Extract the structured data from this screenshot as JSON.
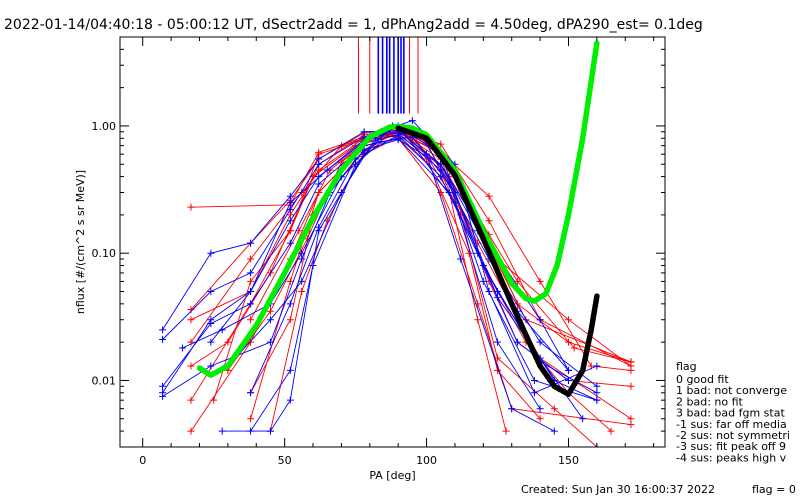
{
  "header": {
    "title": "2022-01-14/04:40:18 - 05:00:12 UT, dSectr2add = 1, dPhAng2add = 4.50deg, dPA290_est=    0.1deg"
  },
  "footer": {
    "created": "Created: Sun Jan 30 16:00:37 2022",
    "flag": "flag = 0"
  },
  "legend": {
    "title": "flag",
    "items": [
      " 0 good fit",
      " 1 bad: not converge",
      " 2 bad: no fit",
      " 3 bad: bad fgm stat",
      "-1 sus: far off media",
      "-2 sus: not symmetri",
      "-3 sus: fit peak off 9",
      "-4 sus: peaks high v"
    ]
  },
  "colors": {
    "red": "#ff0000",
    "blue": "#0000ff",
    "green": "#00ee00",
    "black": "#000000",
    "axis": "#000000"
  },
  "chart_data": {
    "type": "line",
    "xlabel": "PA [deg]",
    "ylabel": "nflux [#/(cm^2 s sr MeV)]",
    "xlim": [
      -8,
      184
    ],
    "ylim": [
      0.003,
      5
    ],
    "y_scale": "log",
    "x_ticks": [
      0,
      50,
      100,
      150
    ],
    "x_tick_labels": [
      "0",
      "50",
      "100",
      "150"
    ],
    "y_ticks": [
      0.01,
      0.1,
      1.0
    ],
    "y_tick_labels": [
      "0.01",
      "0.10",
      "1.00"
    ],
    "x_minor_step": 10,
    "grid": false,
    "legend_position": "right, outside plot",
    "series": [
      {
        "color": "red",
        "x": [
          17,
          52,
          62,
          78,
          90,
          105,
          122,
          132,
          152,
          172
        ],
        "y": [
          0.23,
          0.24,
          0.62,
          0.82,
          0.9,
          0.62,
          0.14,
          0.06,
          0.018,
          0.014
        ]
      },
      {
        "color": "red",
        "x": [
          17,
          38,
          52,
          62,
          78,
          90,
          105,
          122,
          140,
          172
        ],
        "y": [
          0.036,
          0.12,
          0.26,
          0.55,
          0.88,
          0.95,
          0.72,
          0.18,
          0.03,
          0.013
        ]
      },
      {
        "color": "red",
        "x": [
          17,
          38,
          52,
          62,
          78,
          90,
          105,
          122,
          132,
          150,
          172
        ],
        "y": [
          0.03,
          0.05,
          0.2,
          0.45,
          0.8,
          0.92,
          0.6,
          0.12,
          0.04,
          0.02,
          0.014
        ]
      },
      {
        "color": "red",
        "x": [
          17,
          38,
          52,
          62,
          78,
          90,
          105,
          122,
          132,
          150,
          172
        ],
        "y": [
          0.007,
          0.04,
          0.15,
          0.5,
          0.85,
          0.9,
          0.55,
          0.06,
          0.02,
          0.01,
          0.009
        ]
      },
      {
        "color": "red",
        "x": [
          17,
          38,
          52,
          62,
          78,
          90,
          105,
          118,
          130,
          172
        ],
        "y": [
          0.004,
          0.02,
          0.09,
          0.3,
          0.7,
          0.8,
          0.3,
          0.04,
          0.006,
          0.0045
        ]
      },
      {
        "color": "red",
        "x": [
          25,
          38,
          52,
          62,
          78,
          90,
          105,
          122,
          140,
          158,
          172
        ],
        "y": [
          0.007,
          0.06,
          0.15,
          0.6,
          0.78,
          0.88,
          0.62,
          0.28,
          0.06,
          0.013,
          0.012
        ]
      },
      {
        "color": "red",
        "x": [
          30,
          45,
          58,
          70,
          84,
          95,
          110,
          125,
          150,
          172
        ],
        "y": [
          0.012,
          0.035,
          0.13,
          0.52,
          0.9,
          0.95,
          0.45,
          0.09,
          0.03,
          0.013
        ]
      },
      {
        "color": "red",
        "x": [
          38,
          52,
          62,
          75,
          90,
          100,
          112,
          125,
          145,
          160
        ],
        "y": [
          0.005,
          0.06,
          0.3,
          0.6,
          0.9,
          0.75,
          0.2,
          0.015,
          0.006,
          0.003
        ]
      },
      {
        "color": "red",
        "x": [
          38,
          52,
          60,
          75,
          90,
          108,
          120,
          135,
          150,
          165
        ],
        "y": [
          0.008,
          0.03,
          0.2,
          0.55,
          0.82,
          0.35,
          0.08,
          0.02,
          0.008,
          0.004
        ]
      },
      {
        "color": "red",
        "x": [
          17,
          38,
          56,
          70,
          82,
          95,
          108,
          120,
          135,
          172
        ],
        "y": [
          0.02,
          0.09,
          0.3,
          0.7,
          0.85,
          0.8,
          0.4,
          0.14,
          0.03,
          0.014
        ]
      },
      {
        "color": "red",
        "x": [
          45,
          56,
          65,
          78,
          90,
          100,
          115,
          125,
          140
        ],
        "y": [
          0.004,
          0.05,
          0.18,
          0.62,
          0.95,
          0.55,
          0.1,
          0.012,
          0.005
        ]
      },
      {
        "color": "red",
        "x": [
          17,
          30,
          45,
          60,
          75,
          90,
          105,
          118,
          140,
          172
        ],
        "y": [
          0.013,
          0.02,
          0.07,
          0.4,
          0.7,
          0.85,
          0.5,
          0.12,
          0.015,
          0.005
        ]
      },
      {
        "color": "red",
        "x": [
          38,
          55,
          66,
          80,
          95,
          108,
          118,
          128
        ],
        "y": [
          0.03,
          0.15,
          0.45,
          0.8,
          0.88,
          0.3,
          0.03,
          0.004
        ]
      },
      {
        "color": "blue",
        "x": [
          7,
          24,
          38,
          52,
          62,
          78,
          90,
          105,
          122,
          140,
          150
        ],
        "y": [
          0.025,
          0.1,
          0.12,
          0.28,
          0.55,
          0.9,
          0.92,
          0.5,
          0.12,
          0.03,
          0.012
        ]
      },
      {
        "color": "blue",
        "x": [
          7,
          24,
          38,
          52,
          62,
          78,
          90,
          105,
          122,
          140,
          160
        ],
        "y": [
          0.021,
          0.05,
          0.07,
          0.22,
          0.5,
          0.82,
          0.88,
          0.45,
          0.09,
          0.02,
          0.009
        ]
      },
      {
        "color": "blue",
        "x": [
          7,
          24,
          38,
          52,
          62,
          78,
          90,
          105,
          120,
          140,
          160
        ],
        "y": [
          0.008,
          0.03,
          0.05,
          0.18,
          0.4,
          0.75,
          0.85,
          0.4,
          0.08,
          0.014,
          0.008
        ]
      },
      {
        "color": "blue",
        "x": [
          7,
          24,
          38,
          52,
          62,
          78,
          90,
          108,
          125,
          145,
          160
        ],
        "y": [
          0.009,
          0.028,
          0.04,
          0.12,
          0.35,
          0.7,
          0.8,
          0.3,
          0.05,
          0.01,
          0.007
        ]
      },
      {
        "color": "blue",
        "x": [
          7,
          24,
          45,
          56,
          66,
          78,
          90,
          105,
          118,
          132,
          150
        ],
        "y": [
          0.0075,
          0.013,
          0.02,
          0.09,
          0.3,
          0.65,
          0.78,
          0.5,
          0.15,
          0.035,
          0.012
        ]
      },
      {
        "color": "blue",
        "x": [
          14,
          28,
          45,
          56,
          70,
          84,
          95,
          108,
          120,
          138,
          160
        ],
        "y": [
          0.018,
          0.025,
          0.04,
          0.1,
          0.4,
          0.75,
          0.82,
          0.35,
          0.06,
          0.01,
          0.007
        ]
      },
      {
        "color": "blue",
        "x": [
          28,
          45,
          52,
          62,
          78,
          92,
          110,
          125,
          140
        ],
        "y": [
          0.004,
          0.004,
          0.007,
          0.15,
          0.6,
          0.9,
          0.25,
          0.02,
          0.006
        ]
      },
      {
        "color": "blue",
        "x": [
          38,
          52,
          60,
          75,
          88,
          100,
          112,
          130,
          145
        ],
        "y": [
          0.004,
          0.012,
          0.08,
          0.5,
          1.0,
          0.6,
          0.09,
          0.006,
          0.004
        ]
      },
      {
        "color": "blue",
        "x": [
          24,
          38,
          52,
          65,
          80,
          95,
          110,
          122,
          138,
          160
        ],
        "y": [
          0.02,
          0.05,
          0.25,
          0.45,
          0.85,
          1.1,
          0.5,
          0.05,
          0.008,
          0.013
        ]
      },
      {
        "color": "blue",
        "x": [
          30,
          45,
          56,
          70,
          82,
          90,
          105,
          118,
          132,
          150
        ],
        "y": [
          0.013,
          0.03,
          0.06,
          0.3,
          0.8,
          1.0,
          0.6,
          0.1,
          0.02,
          0.01
        ]
      },
      {
        "color": "blue",
        "x": [
          38,
          52,
          62,
          75,
          86,
          98,
          110,
          125,
          140,
          155
        ],
        "y": [
          0.008,
          0.04,
          0.16,
          0.55,
          0.9,
          0.85,
          0.3,
          0.045,
          0.015,
          0.005
        ]
      }
    ],
    "fits": [
      {
        "color": "green",
        "x": [
          20,
          24,
          30,
          40,
          50,
          60,
          70,
          80,
          87,
          90,
          95,
          100,
          110,
          120,
          130,
          135,
          138,
          142,
          146,
          150,
          155,
          160
        ],
        "y": [
          0.0125,
          0.011,
          0.013,
          0.027,
          0.07,
          0.19,
          0.45,
          0.82,
          0.98,
          0.99,
          0.96,
          0.85,
          0.45,
          0.15,
          0.058,
          0.044,
          0.042,
          0.048,
          0.08,
          0.2,
          0.8,
          4.5
        ]
      },
      {
        "color": "black",
        "x": [
          90,
          100,
          110,
          120,
          130,
          140,
          145,
          150,
          155,
          158,
          160
        ],
        "y": [
          0.96,
          0.8,
          0.41,
          0.13,
          0.04,
          0.013,
          0.009,
          0.0078,
          0.012,
          0.025,
          0.046
        ]
      }
    ],
    "vertical_lines": [
      {
        "color": "red",
        "x": [
          76,
          80,
          86,
          90,
          94,
          97
        ]
      },
      {
        "color": "blue",
        "x": [
          83,
          84.5,
          86,
          87,
          88.5,
          90,
          91,
          92
        ]
      }
    ]
  }
}
